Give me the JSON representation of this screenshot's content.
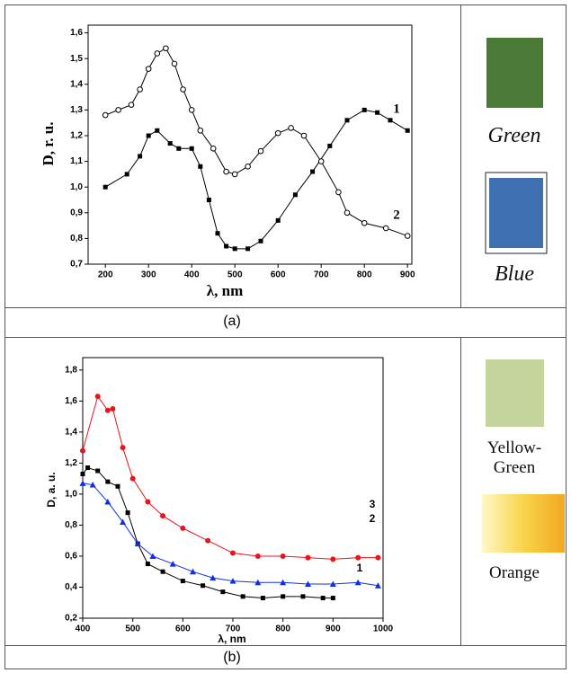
{
  "chart_data": [
    {
      "type": "line",
      "caption": "(a)",
      "ylabel": "D, r. u.",
      "xlabel": "λ, nm",
      "xlim": [
        160,
        910
      ],
      "xticks": [
        200,
        300,
        400,
        500,
        600,
        700,
        800,
        900
      ],
      "ylim": [
        0.7,
        1.63
      ],
      "yticks": [
        {
          "value": 0.7,
          "label": "0,7"
        },
        {
          "value": 0.8,
          "label": "0,8"
        },
        {
          "value": 0.9,
          "label": "0,9"
        },
        {
          "value": 1.0,
          "label": "1,0"
        },
        {
          "value": 1.1,
          "label": "1,1"
        },
        {
          "value": 1.2,
          "label": "1,2"
        },
        {
          "value": 1.3,
          "label": "1,3"
        },
        {
          "value": 1.4,
          "label": "1,4"
        },
        {
          "value": 1.5,
          "label": "1,5"
        },
        {
          "value": 1.6,
          "label": "1,6"
        }
      ],
      "series": [
        {
          "name": "1",
          "color": "#000000",
          "marker": "square",
          "x": [
            200,
            250,
            280,
            300,
            320,
            350,
            370,
            400,
            420,
            440,
            460,
            480,
            500,
            530,
            560,
            600,
            640,
            680,
            720,
            760,
            800,
            830,
            860,
            900
          ],
          "values": [
            1.0,
            1.05,
            1.12,
            1.2,
            1.22,
            1.17,
            1.15,
            1.15,
            1.08,
            0.95,
            0.82,
            0.77,
            0.76,
            0.76,
            0.79,
            0.87,
            0.97,
            1.06,
            1.16,
            1.26,
            1.3,
            1.29,
            1.26,
            1.22
          ]
        },
        {
          "name": "2",
          "color": "#000000",
          "marker": "circle-open",
          "x": [
            200,
            230,
            260,
            280,
            300,
            320,
            340,
            360,
            380,
            400,
            420,
            450,
            480,
            500,
            530,
            560,
            600,
            630,
            660,
            700,
            740,
            760,
            800,
            850,
            900
          ],
          "values": [
            1.28,
            1.3,
            1.32,
            1.38,
            1.46,
            1.52,
            1.54,
            1.48,
            1.38,
            1.3,
            1.22,
            1.15,
            1.06,
            1.05,
            1.08,
            1.14,
            1.21,
            1.23,
            1.2,
            1.1,
            0.98,
            0.9,
            0.86,
            0.84,
            0.81
          ]
        }
      ],
      "swatches": [
        "Green",
        "Blue"
      ]
    },
    {
      "type": "line",
      "caption": "(b)",
      "ylabel": "D, a. u.",
      "xlabel": "λ, nm",
      "xlim": [
        400,
        1000
      ],
      "xticks": [
        400,
        500,
        600,
        700,
        800,
        900,
        1000
      ],
      "ylim": [
        0.2,
        1.88
      ],
      "yticks": [
        {
          "value": 0.2,
          "label": "0,2"
        },
        {
          "value": 0.4,
          "label": "0,4"
        },
        {
          "value": 0.6,
          "label": "0,6"
        },
        {
          "value": 0.8,
          "label": "0,8"
        },
        {
          "value": 1.0,
          "label": "1,0"
        },
        {
          "value": 1.2,
          "label": "1,2"
        },
        {
          "value": 1.4,
          "label": "1,4"
        },
        {
          "value": 1.6,
          "label": "1,6"
        },
        {
          "value": 1.8,
          "label": "1,8"
        }
      ],
      "series": [
        {
          "name": "1",
          "color": "#000000",
          "marker": "square",
          "x": [
            400,
            410,
            430,
            450,
            470,
            490,
            510,
            530,
            560,
            600,
            640,
            680,
            720,
            760,
            800,
            840,
            880,
            900
          ],
          "values": [
            1.13,
            1.17,
            1.15,
            1.08,
            1.05,
            0.88,
            0.68,
            0.55,
            0.5,
            0.44,
            0.41,
            0.37,
            0.34,
            0.33,
            0.34,
            0.34,
            0.33,
            0.33
          ]
        },
        {
          "name": "2",
          "color": "#e8141c",
          "marker": "circle",
          "x": [
            400,
            430,
            450,
            460,
            480,
            500,
            530,
            560,
            600,
            650,
            700,
            750,
            800,
            850,
            900,
            950,
            990
          ],
          "values": [
            1.28,
            1.63,
            1.54,
            1.55,
            1.3,
            1.1,
            0.95,
            0.86,
            0.78,
            0.7,
            0.62,
            0.6,
            0.6,
            0.59,
            0.58,
            0.59,
            0.59
          ]
        },
        {
          "name": "3",
          "color": "#1030e0",
          "marker": "triangle",
          "x": [
            400,
            420,
            450,
            480,
            510,
            540,
            580,
            620,
            660,
            700,
            750,
            800,
            850,
            900,
            950,
            990
          ],
          "values": [
            1.07,
            1.06,
            0.95,
            0.82,
            0.68,
            0.6,
            0.55,
            0.5,
            0.46,
            0.44,
            0.43,
            0.43,
            0.42,
            0.42,
            0.43,
            0.41
          ]
        }
      ],
      "swatches": [
        "Yellow-Green",
        "Orange"
      ]
    }
  ]
}
